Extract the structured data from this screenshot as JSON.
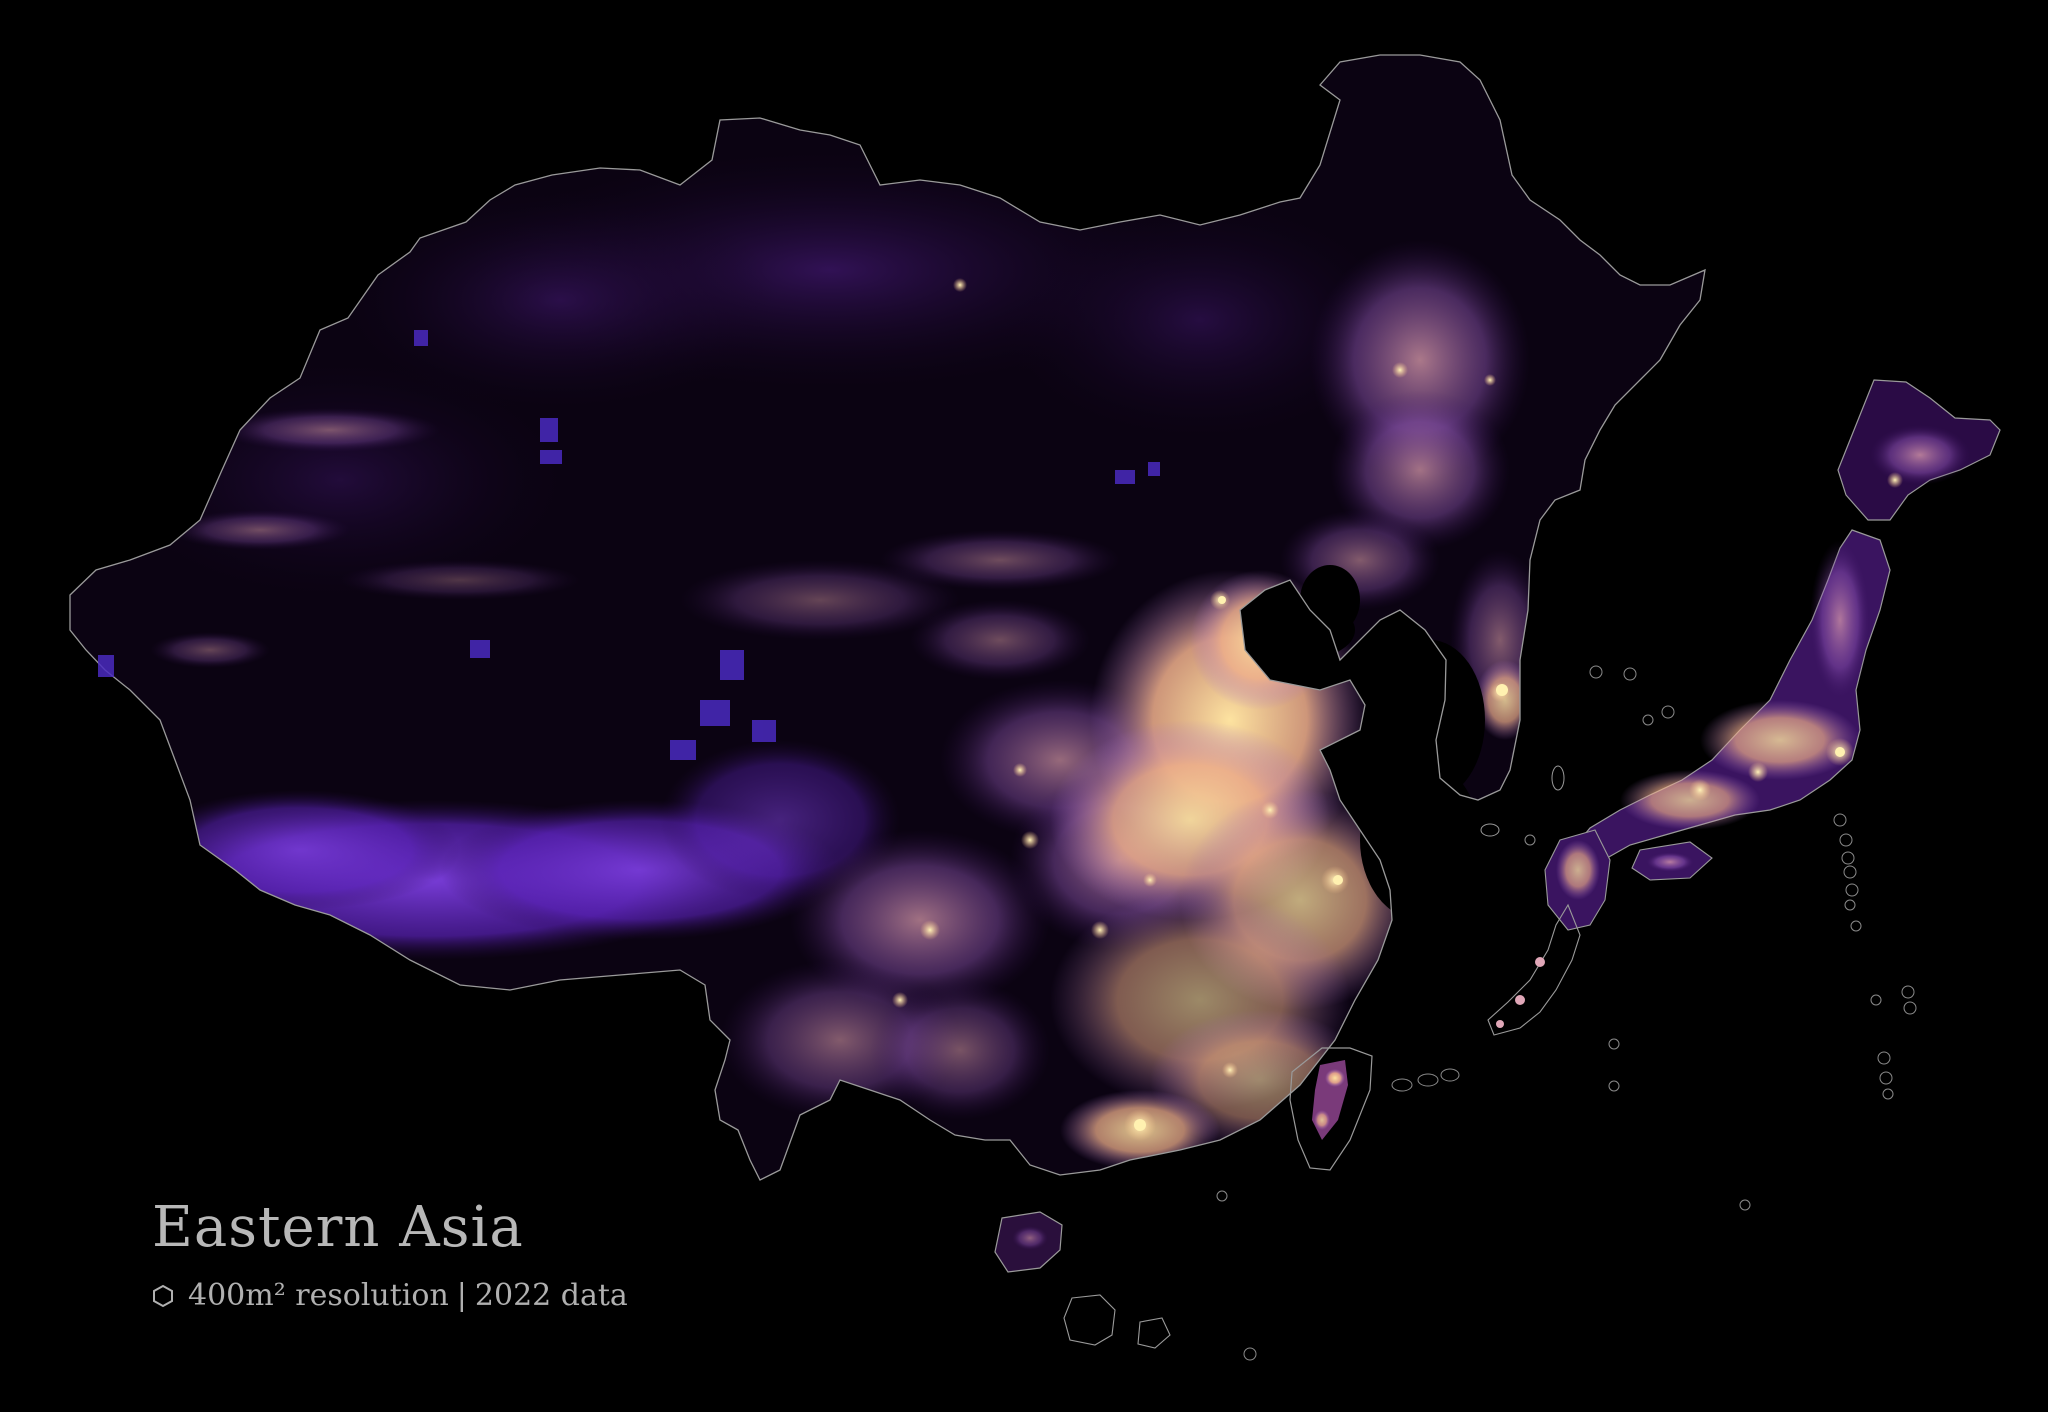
{
  "map": {
    "title": "Eastern Asia",
    "resolution_label": "400m² resolution",
    "separator": "|",
    "data_year_label": "2022 data",
    "legend_icon": "hexagon-icon",
    "colors": {
      "background": "#000000",
      "low_density": "#3a0f5e",
      "mid_low_density": "#6b2fc8",
      "mid_density": "#a56bd6",
      "high_density": "#e7a3c0",
      "highest_density": "#fcd88a",
      "border": "#9a9a9a"
    }
  }
}
